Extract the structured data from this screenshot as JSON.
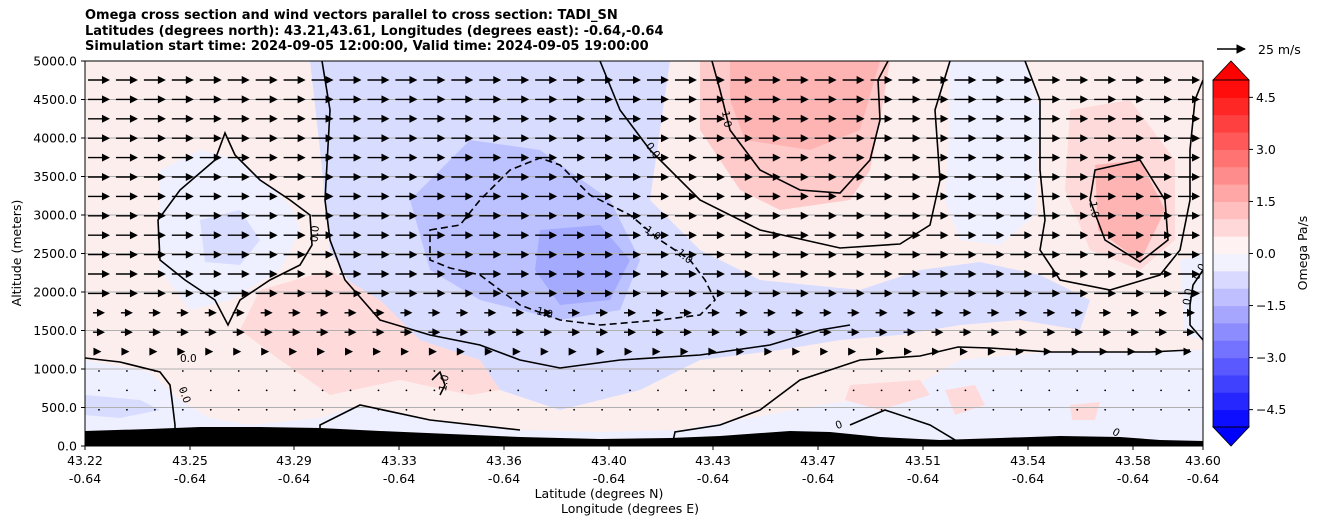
{
  "title_lines": [
    "Omega cross section and wind vectors parallel to cross section: TADI_SN",
    "Latitudes (degrees north): 43.21,43.61, Longitudes (degrees east): -0.64,-0.64",
    "Simulation start time: 2024-09-05 12:00:00, Valid time: 2024-09-05 19:00:00"
  ],
  "chart_data": {
    "type": "heatmap",
    "xlabel_lines": [
      "Latitude (degrees N)",
      "Longitude (degrees E)"
    ],
    "ylabel": "Altitude (meters)",
    "ylim": [
      0,
      5000
    ],
    "y_ticks": [
      0,
      500,
      1000,
      1500,
      2000,
      2500,
      3000,
      3500,
      4000,
      4500,
      5000
    ],
    "y_tick_labels": [
      "0.0",
      "500.0",
      "1000.0",
      "1500.0",
      "2000.0",
      "2500.0",
      "3000.0",
      "3500.0",
      "4000.0",
      "4500.0",
      "5000.0"
    ],
    "x_ticks": [
      {
        "lat": "43.22",
        "lon": "-0.64"
      },
      {
        "lat": "43.25",
        "lon": "-0.64"
      },
      {
        "lat": "43.29",
        "lon": "-0.64"
      },
      {
        "lat": "43.33",
        "lon": "-0.64"
      },
      {
        "lat": "43.36",
        "lon": "-0.64"
      },
      {
        "lat": "43.40",
        "lon": "-0.64"
      },
      {
        "lat": "43.43",
        "lon": "-0.64"
      },
      {
        "lat": "43.47",
        "lon": "-0.64"
      },
      {
        "lat": "43.51",
        "lon": "-0.64"
      },
      {
        "lat": "43.54",
        "lon": "-0.64"
      },
      {
        "lat": "43.58",
        "lon": "-0.64"
      },
      {
        "lat": "43.60",
        "lon": "-0.64"
      }
    ],
    "horizontal_grid": true,
    "colorbar": {
      "label": "Omega Pa/s",
      "range": [
        -5,
        5
      ],
      "tick_values": [
        -4.5,
        -3.0,
        -1.5,
        0.0,
        1.5,
        3.0,
        4.5
      ],
      "tick_labels": [
        "−4.5",
        "−3.0",
        "−1.5",
        "0.0",
        "1.5",
        "3.0",
        "4.5"
      ],
      "low_color": "#0000ff",
      "high_color": "#ff0000",
      "extend": "both"
    },
    "contour_labels": [
      "0.0",
      "0.0",
      "0.0",
      "0.0",
      "1.0",
      "1.0",
      "-1.0",
      "-1.0",
      "1.0",
      "0.0",
      "1.0",
      "0.0",
      "0",
      "0",
      "0.0"
    ],
    "wind_key": {
      "label": "25 m/s",
      "speed": 25
    },
    "terrain_color": "#000000"
  }
}
